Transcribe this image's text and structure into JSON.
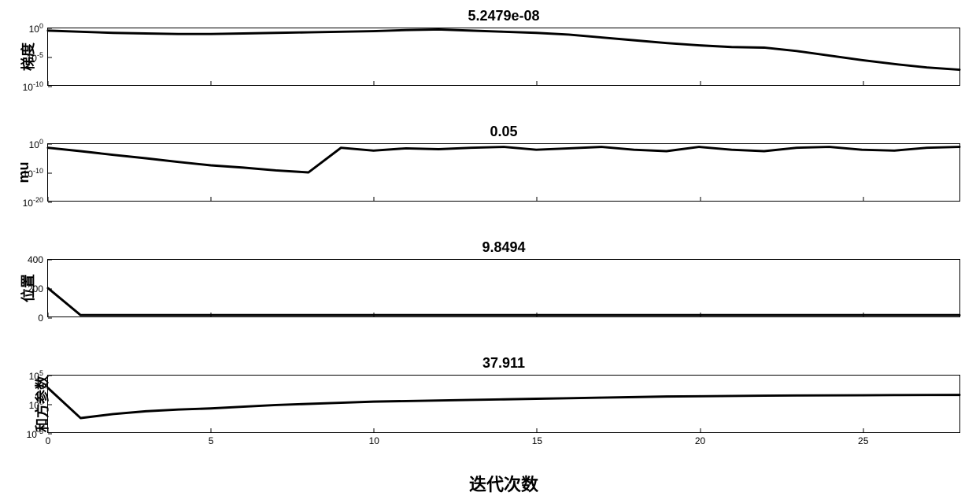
{
  "figure": {
    "background_color": "#ffffff",
    "line_color": "#000000",
    "line_width": 3,
    "axis_color": "#000000",
    "xlabel": "迭代次数",
    "xlabel_fontsize": 22,
    "title_fontsize": 18,
    "ylabel_fontsize": 18,
    "tick_fontsize": 12,
    "xlim": [
      0,
      28
    ],
    "xticks": [
      0,
      5,
      10,
      15,
      20,
      25
    ],
    "subplots": [
      {
        "id": "gradient",
        "title": "5.2479e-08",
        "ylabel": "梯度",
        "scale": "log",
        "ylim_exp": [
          -10,
          0
        ],
        "yticks_exp": [
          0,
          -5,
          -10
        ],
        "x": [
          0,
          1,
          2,
          3,
          4,
          5,
          6,
          7,
          8,
          9,
          10,
          11,
          12,
          13,
          14,
          15,
          16,
          17,
          18,
          19,
          20,
          21,
          22,
          23,
          24,
          25,
          26,
          27,
          28
        ],
        "y_exp": [
          -0.4,
          -0.6,
          -0.8,
          -0.9,
          -1.0,
          -1.0,
          -0.9,
          -0.8,
          -0.7,
          -0.6,
          -0.5,
          -0.3,
          -0.2,
          -0.4,
          -0.6,
          -0.8,
          -1.1,
          -1.6,
          -2.1,
          -2.6,
          -3.0,
          -3.3,
          -3.4,
          -4.0,
          -4.8,
          -5.6,
          -6.3,
          -6.9,
          -7.3
        ]
      },
      {
        "id": "mu",
        "title": "0.05",
        "ylabel": "mu",
        "scale": "log",
        "ylim_exp": [
          -20,
          0
        ],
        "yticks_exp": [
          0,
          -10,
          -20
        ],
        "x": [
          0,
          1,
          2,
          3,
          4,
          5,
          6,
          7,
          8,
          9,
          10,
          11,
          12,
          13,
          14,
          15,
          16,
          17,
          18,
          19,
          20,
          21,
          22,
          23,
          24,
          25,
          26,
          27,
          28
        ],
        "y_exp": [
          -1.3,
          -2.5,
          -3.8,
          -5.0,
          -6.3,
          -7.5,
          -8.3,
          -9.3,
          -10.0,
          -1.3,
          -2.3,
          -1.5,
          -1.8,
          -1.3,
          -1.0,
          -2.0,
          -1.5,
          -1.0,
          -2.0,
          -2.5,
          -1.0,
          -2.0,
          -2.5,
          -1.3,
          -1.0,
          -2.0,
          -2.3,
          -1.3,
          -1.0
        ]
      },
      {
        "id": "position",
        "title": "9.8494",
        "ylabel": "位置",
        "scale": "linear",
        "ylim": [
          0,
          400
        ],
        "yticks": [
          0,
          200,
          400
        ],
        "x": [
          0,
          1,
          2,
          3,
          4,
          5,
          6,
          7,
          8,
          9,
          10,
          11,
          12,
          13,
          14,
          15,
          16,
          17,
          18,
          19,
          20,
          21,
          22,
          23,
          24,
          25,
          26,
          27,
          28
        ],
        "y": [
          200,
          10,
          10,
          10,
          10,
          10,
          10,
          10,
          10,
          10,
          10,
          10,
          10,
          10,
          10,
          10,
          10,
          10,
          10,
          10,
          10,
          10,
          10,
          10,
          10,
          10,
          10,
          10,
          10
        ]
      },
      {
        "id": "sumsq",
        "title": "37.911",
        "ylabel": "和方参数",
        "scale": "log",
        "ylim_exp": [
          -5,
          5
        ],
        "yticks_exp": [
          5,
          0,
          -5
        ],
        "x": [
          0,
          1,
          2,
          3,
          4,
          5,
          6,
          7,
          8,
          9,
          10,
          11,
          12,
          13,
          14,
          15,
          16,
          17,
          18,
          19,
          20,
          21,
          22,
          23,
          24,
          25,
          26,
          27,
          28
        ],
        "y_exp": [
          2.8,
          -2.5,
          -1.8,
          -1.3,
          -1.0,
          -0.8,
          -0.5,
          -0.2,
          0.0,
          0.2,
          0.4,
          0.5,
          0.6,
          0.7,
          0.8,
          0.9,
          1.0,
          1.1,
          1.2,
          1.3,
          1.35,
          1.4,
          1.45,
          1.48,
          1.5,
          1.52,
          1.55,
          1.57,
          1.58
        ]
      }
    ]
  }
}
